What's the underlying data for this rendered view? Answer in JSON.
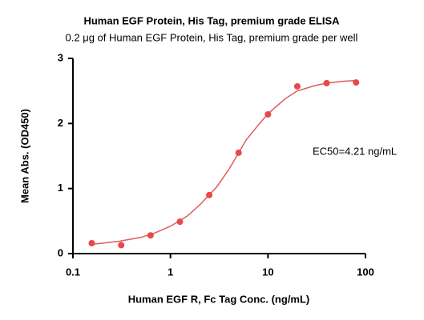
{
  "chart_data": {
    "type": "scatter",
    "title": "Human EGF Protein, His Tag, premium grade ELISA",
    "subtitle": "0.2 μg of Human EGF Protein, His Tag, premium grade per well",
    "x_label": "Human EGF R, Fc Tag Conc. (ng/mL)",
    "y_label": "Mean Abs. (OD450)",
    "annotation": "EC50=4.21 ng/mL",
    "x": [
      0.156,
      0.3125,
      0.625,
      1.25,
      2.5,
      5,
      10,
      20,
      40,
      80
    ],
    "values": [
      0.16,
      0.13,
      0.28,
      0.49,
      0.9,
      1.55,
      2.14,
      2.57,
      2.62,
      2.63
    ],
    "color": "#e8474b",
    "curve": {
      "x": [
        0.15,
        0.2,
        0.3,
        0.5,
        0.7,
        1,
        1.5,
        2,
        3,
        4,
        6,
        8,
        10,
        15,
        20,
        30,
        40,
        60,
        80
      ],
      "values": [
        0.14,
        0.16,
        0.19,
        0.25,
        0.32,
        0.42,
        0.58,
        0.75,
        1.03,
        1.3,
        1.75,
        1.98,
        2.15,
        2.38,
        2.5,
        2.58,
        2.62,
        2.65,
        2.66
      ],
      "color": "#e05a5a"
    },
    "xlog": true,
    "xlim": [
      0.1,
      100
    ],
    "xticks": [
      0.1,
      1,
      10,
      100
    ],
    "ylim": [
      0,
      3
    ],
    "yticks": [
      0,
      1,
      2,
      3
    ]
  }
}
